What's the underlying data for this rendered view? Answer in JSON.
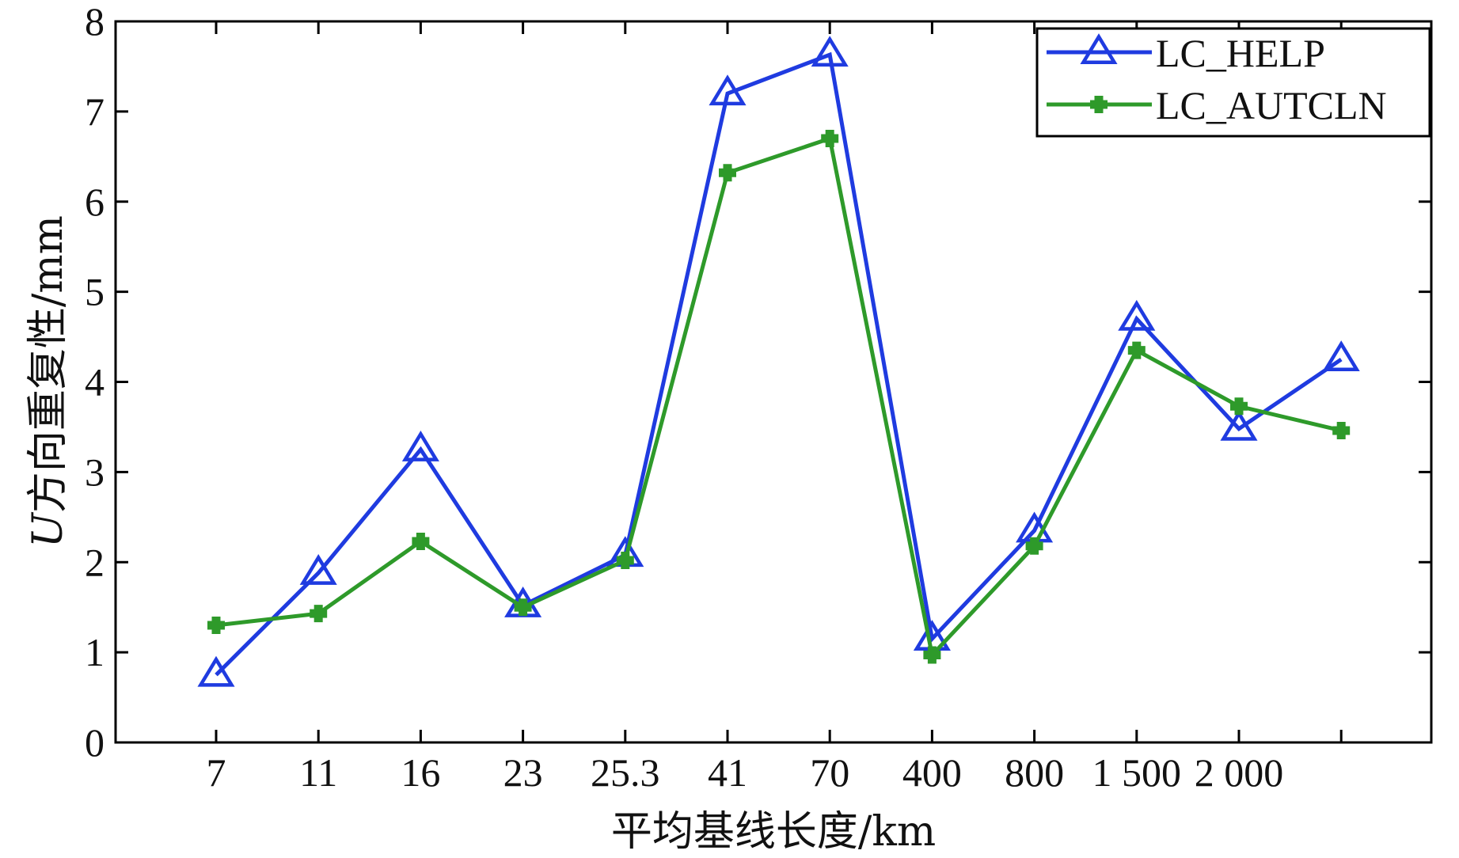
{
  "chart_data": {
    "type": "line",
    "categories": [
      "7",
      "11",
      "16",
      "23",
      "25.3",
      "41",
      "70",
      "400",
      "800",
      "1 500",
      "2 000",
      ""
    ],
    "series": [
      {
        "name": "LC_HELP",
        "values": [
          0.75,
          1.88,
          3.25,
          1.52,
          2.08,
          7.2,
          7.63,
          1.15,
          2.35,
          4.7,
          3.48,
          4.25
        ],
        "color": "#1f3be0",
        "marker": "triangle-open"
      },
      {
        "name": "LC_AUTCLN",
        "values": [
          1.3,
          1.43,
          2.23,
          1.5,
          2.02,
          6.32,
          6.7,
          0.97,
          2.18,
          4.35,
          3.73,
          3.46
        ],
        "color": "#2e9a2a",
        "marker": "plus-filled"
      }
    ],
    "ylim": [
      0,
      8
    ],
    "yticks": [
      "0",
      "1",
      "2",
      "3",
      "4",
      "5",
      "6",
      "7",
      "8"
    ],
    "xlabel": "平均基线长度/km",
    "ylabel_italic": "U",
    "ylabel": "方向重复性/mm",
    "legend_position": "top-right",
    "grid": false
  }
}
